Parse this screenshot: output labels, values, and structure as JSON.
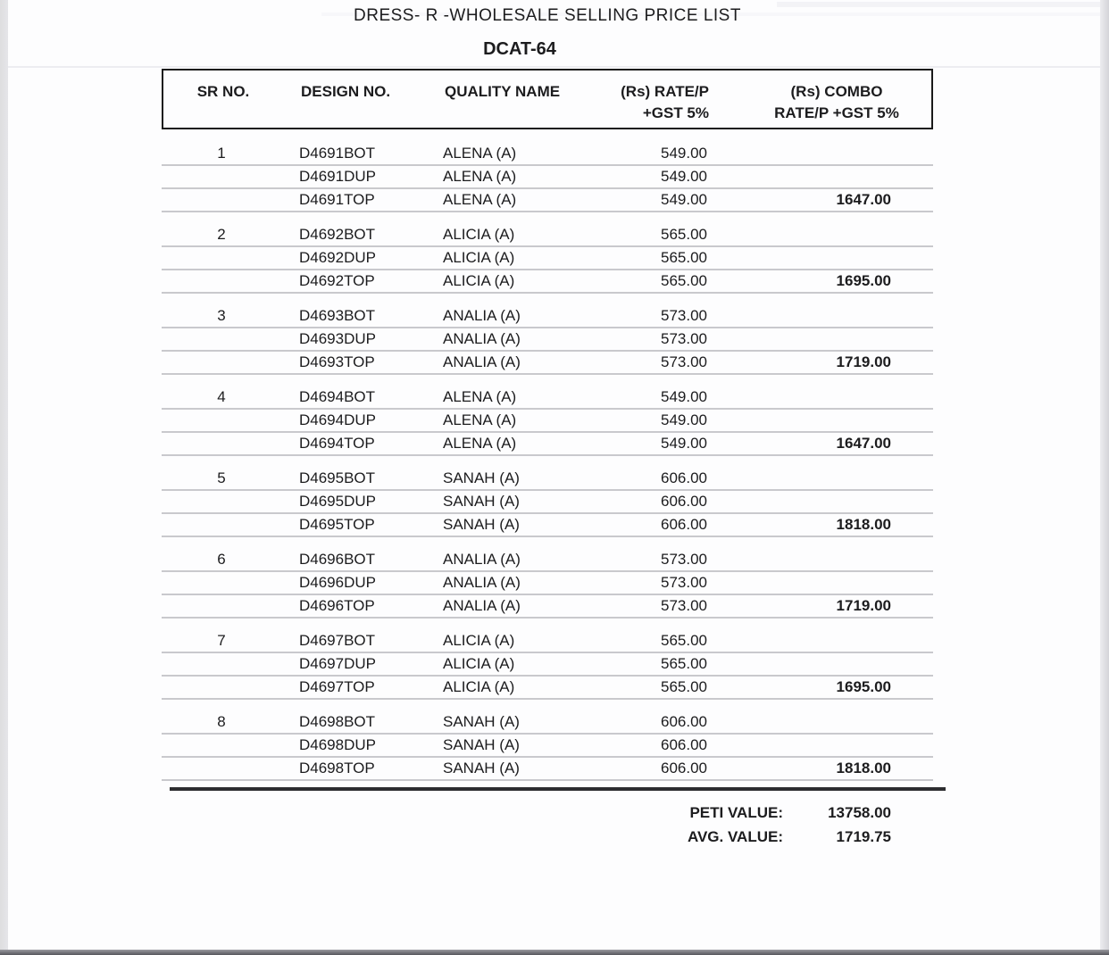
{
  "page": {
    "title": "DRESS- R -WHOLESALE SELLING PRICE LIST",
    "subtitle": "DCAT-64"
  },
  "colors": {
    "text": "#1c1c1e",
    "sep": "#c9c9cd",
    "border": "#1a1a1a",
    "thick": "#2d2d30",
    "page": "#fdfdfe",
    "edgeL": "#e5e5e9",
    "edgeR": "#d4d4d9",
    "edgeB": "#56565c"
  },
  "table": {
    "headers": {
      "sr": "SR NO.",
      "design": "DESIGN NO.",
      "quality": "QUALITY NAME",
      "rate_line1": "(Rs) RATE/P",
      "rate_line2": "+GST 5%",
      "combo_line1": "(Rs) COMBO",
      "combo_line2": "RATE/P +GST 5%"
    },
    "groups": [
      {
        "sr": "1",
        "rows": [
          {
            "design": "D4691BOT",
            "quality": "ALENA (A)",
            "rate": "549.00",
            "combo": ""
          },
          {
            "design": "D4691DUP",
            "quality": "ALENA (A)",
            "rate": "549.00",
            "combo": ""
          },
          {
            "design": "D4691TOP",
            "quality": "ALENA (A)",
            "rate": "549.00",
            "combo": "1647.00"
          }
        ]
      },
      {
        "sr": "2",
        "rows": [
          {
            "design": "D4692BOT",
            "quality": "ALICIA (A)",
            "rate": "565.00",
            "combo": ""
          },
          {
            "design": "D4692DUP",
            "quality": "ALICIA (A)",
            "rate": "565.00",
            "combo": ""
          },
          {
            "design": "D4692TOP",
            "quality": "ALICIA (A)",
            "rate": "565.00",
            "combo": "1695.00"
          }
        ]
      },
      {
        "sr": "3",
        "rows": [
          {
            "design": "D4693BOT",
            "quality": "ANALIA (A)",
            "rate": "573.00",
            "combo": ""
          },
          {
            "design": "D4693DUP",
            "quality": "ANALIA (A)",
            "rate": "573.00",
            "combo": ""
          },
          {
            "design": "D4693TOP",
            "quality": "ANALIA (A)",
            "rate": "573.00",
            "combo": "1719.00"
          }
        ]
      },
      {
        "sr": "4",
        "rows": [
          {
            "design": "D4694BOT",
            "quality": "ALENA (A)",
            "rate": "549.00",
            "combo": ""
          },
          {
            "design": "D4694DUP",
            "quality": "ALENA (A)",
            "rate": "549.00",
            "combo": ""
          },
          {
            "design": "D4694TOP",
            "quality": "ALENA (A)",
            "rate": "549.00",
            "combo": "1647.00"
          }
        ]
      },
      {
        "sr": "5",
        "rows": [
          {
            "design": "D4695BOT",
            "quality": "SANAH (A)",
            "rate": "606.00",
            "combo": ""
          },
          {
            "design": "D4695DUP",
            "quality": "SANAH (A)",
            "rate": "606.00",
            "combo": ""
          },
          {
            "design": "D4695TOP",
            "quality": "SANAH (A)",
            "rate": "606.00",
            "combo": "1818.00"
          }
        ]
      },
      {
        "sr": "6",
        "rows": [
          {
            "design": "D4696BOT",
            "quality": "ANALIA (A)",
            "rate": "573.00",
            "combo": ""
          },
          {
            "design": "D4696DUP",
            "quality": "ANALIA (A)",
            "rate": "573.00",
            "combo": ""
          },
          {
            "design": "D4696TOP",
            "quality": "ANALIA (A)",
            "rate": "573.00",
            "combo": "1719.00"
          }
        ]
      },
      {
        "sr": "7",
        "rows": [
          {
            "design": "D4697BOT",
            "quality": "ALICIA (A)",
            "rate": "565.00",
            "combo": ""
          },
          {
            "design": "D4697DUP",
            "quality": "ALICIA (A)",
            "rate": "565.00",
            "combo": ""
          },
          {
            "design": "D4697TOP",
            "quality": "ALICIA (A)",
            "rate": "565.00",
            "combo": "1695.00"
          }
        ]
      },
      {
        "sr": "8",
        "rows": [
          {
            "design": "D4698BOT",
            "quality": "SANAH (A)",
            "rate": "606.00",
            "combo": ""
          },
          {
            "design": "D4698DUP",
            "quality": "SANAH (A)",
            "rate": "606.00",
            "combo": ""
          },
          {
            "design": "D4698TOP",
            "quality": "SANAH (A)",
            "rate": "606.00",
            "combo": "1818.00"
          }
        ]
      }
    ]
  },
  "summary": {
    "peti_label": "PETI VALUE:",
    "peti_value": "13758.00",
    "avg_label": "AVG. VALUE:",
    "avg_value": "1719.75"
  }
}
